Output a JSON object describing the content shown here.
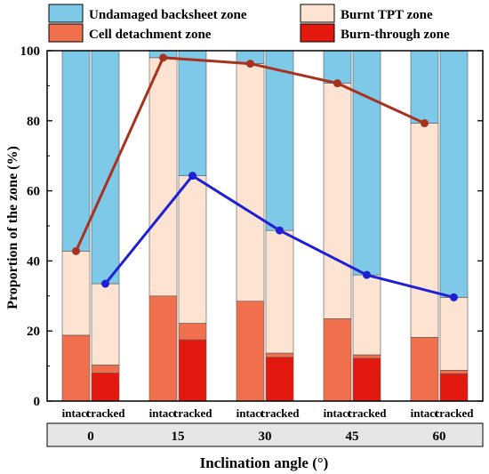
{
  "chart_data": {
    "type": "bar",
    "stacked": true,
    "ylabel": "Proportion of the zone (%)",
    "xlabel": "Inclination angle (°)",
    "ylim": [
      0,
      100
    ],
    "yticks": [
      0,
      20,
      40,
      60,
      80,
      100
    ],
    "angles": [
      "0",
      "15",
      "30",
      "45",
      "60"
    ],
    "cell_labels": [
      "intact",
      "cracked"
    ],
    "colors": {
      "undamaged": "#7ec8e8",
      "burnt_tpt": "#fde3d2",
      "cell_detachment": "#f0704e",
      "burn_through": "#e3180f",
      "line_intact": "#a8311f",
      "line_cracked": "#1f1fd6"
    },
    "legend": {
      "position": "top",
      "entries": [
        {
          "key": "undamaged",
          "label": "Undamaged backsheet zone"
        },
        {
          "key": "burnt_tpt",
          "label": "Burnt TPT zone"
        },
        {
          "key": "cell_detachment",
          "label": "Cell detachment zone"
        },
        {
          "key": "burn_through",
          "label": "Burn-through zone"
        }
      ]
    },
    "bars": [
      {
        "angle": "0",
        "cell": "intact",
        "burn_through": 0,
        "cell_detachment": 18.8,
        "burnt_tpt": 24.0,
        "undamaged": 57.2
      },
      {
        "angle": "0",
        "cell": "cracked",
        "burn_through": 8.0,
        "cell_detachment": 2.3,
        "burnt_tpt": 23.2,
        "undamaged": 66.5
      },
      {
        "angle": "15",
        "cell": "intact",
        "burn_through": 0,
        "cell_detachment": 30.0,
        "burnt_tpt": 68.0,
        "undamaged": 2.0
      },
      {
        "angle": "15",
        "cell": "cracked",
        "burn_through": 17.5,
        "cell_detachment": 4.7,
        "burnt_tpt": 42.1,
        "undamaged": 35.7
      },
      {
        "angle": "30",
        "cell": "intact",
        "burn_through": 0,
        "cell_detachment": 28.5,
        "burnt_tpt": 67.8,
        "undamaged": 3.7
      },
      {
        "angle": "30",
        "cell": "cracked",
        "burn_through": 12.5,
        "cell_detachment": 1.2,
        "burnt_tpt": 35.0,
        "undamaged": 51.3
      },
      {
        "angle": "45",
        "cell": "intact",
        "burn_through": 0,
        "cell_detachment": 23.5,
        "burnt_tpt": 67.2,
        "undamaged": 9.3
      },
      {
        "angle": "45",
        "cell": "cracked",
        "burn_through": 12.2,
        "cell_detachment": 1.0,
        "burnt_tpt": 22.8,
        "undamaged": 64.0
      },
      {
        "angle": "60",
        "cell": "intact",
        "burn_through": 0,
        "cell_detachment": 18.2,
        "burnt_tpt": 61.1,
        "undamaged": 20.7
      },
      {
        "angle": "60",
        "cell": "cracked",
        "burn_through": 7.8,
        "cell_detachment": 1.0,
        "burnt_tpt": 20.8,
        "undamaged": 70.4
      }
    ],
    "lines": [
      {
        "cell": "intact",
        "values": [
          42.8,
          98.0,
          96.3,
          90.7,
          79.3
        ]
      },
      {
        "cell": "cracked",
        "values": [
          33.5,
          64.3,
          48.7,
          36.0,
          29.6
        ]
      }
    ]
  }
}
